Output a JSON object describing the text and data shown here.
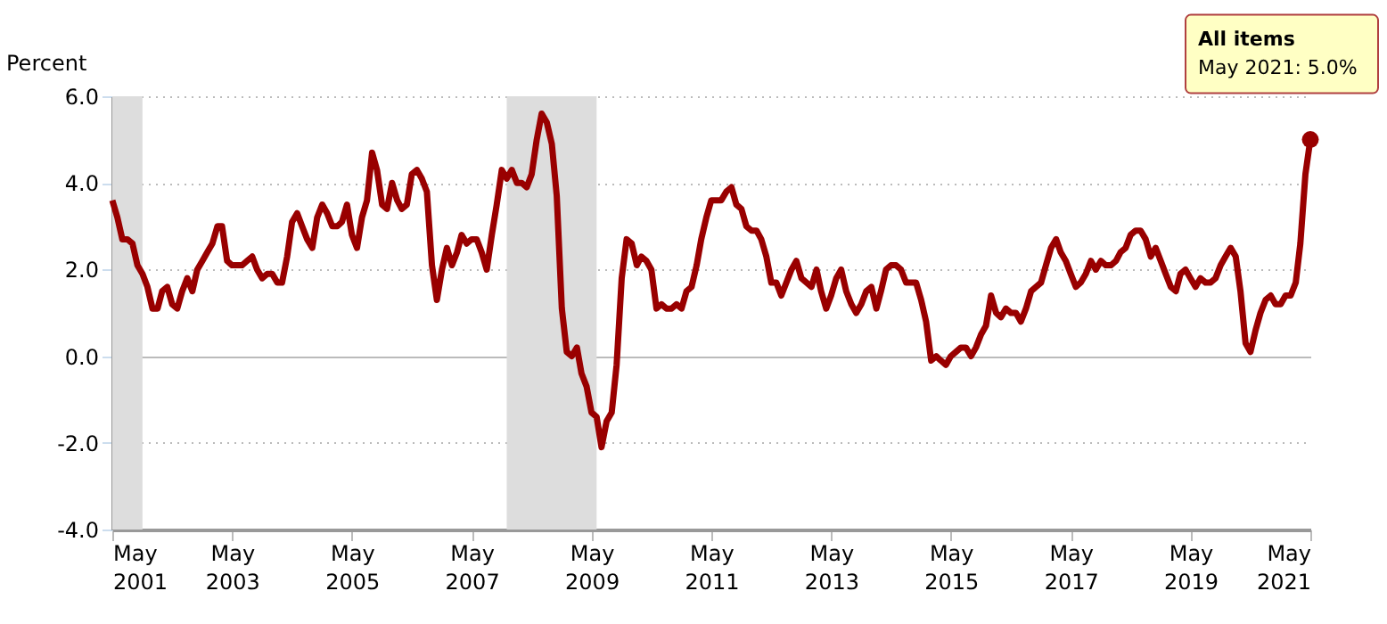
{
  "chart_data": {
    "type": "line",
    "ylabel": "Percent",
    "x": [
      "2001-05",
      "2001-06",
      "2001-07",
      "2001-08",
      "2001-09",
      "2001-10",
      "2001-11",
      "2001-12",
      "2002-01",
      "2002-02",
      "2002-03",
      "2002-04",
      "2002-05",
      "2002-06",
      "2002-07",
      "2002-08",
      "2002-09",
      "2002-10",
      "2002-11",
      "2002-12",
      "2003-01",
      "2003-02",
      "2003-03",
      "2003-04",
      "2003-05",
      "2003-06",
      "2003-07",
      "2003-08",
      "2003-09",
      "2003-10",
      "2003-11",
      "2003-12",
      "2004-01",
      "2004-02",
      "2004-03",
      "2004-04",
      "2004-05",
      "2004-06",
      "2004-07",
      "2004-08",
      "2004-09",
      "2004-10",
      "2004-11",
      "2004-12",
      "2005-01",
      "2005-02",
      "2005-03",
      "2005-04",
      "2005-05",
      "2005-06",
      "2005-07",
      "2005-08",
      "2005-09",
      "2005-10",
      "2005-11",
      "2005-12",
      "2006-01",
      "2006-02",
      "2006-03",
      "2006-04",
      "2006-05",
      "2006-06",
      "2006-07",
      "2006-08",
      "2006-09",
      "2006-10",
      "2006-11",
      "2006-12",
      "2007-01",
      "2007-02",
      "2007-03",
      "2007-04",
      "2007-05",
      "2007-06",
      "2007-07",
      "2007-08",
      "2007-09",
      "2007-10",
      "2007-11",
      "2007-12",
      "2008-01",
      "2008-02",
      "2008-03",
      "2008-04",
      "2008-05",
      "2008-06",
      "2008-07",
      "2008-08",
      "2008-09",
      "2008-10",
      "2008-11",
      "2008-12",
      "2009-01",
      "2009-02",
      "2009-03",
      "2009-04",
      "2009-05",
      "2009-06",
      "2009-07",
      "2009-08",
      "2009-09",
      "2009-10",
      "2009-11",
      "2009-12",
      "2010-01",
      "2010-02",
      "2010-03",
      "2010-04",
      "2010-05",
      "2010-06",
      "2010-07",
      "2010-08",
      "2010-09",
      "2010-10",
      "2010-11",
      "2010-12",
      "2011-01",
      "2011-02",
      "2011-03",
      "2011-04",
      "2011-05",
      "2011-06",
      "2011-07",
      "2011-08",
      "2011-09",
      "2011-10",
      "2011-11",
      "2011-12",
      "2012-01",
      "2012-02",
      "2012-03",
      "2012-04",
      "2012-05",
      "2012-06",
      "2012-07",
      "2012-08",
      "2012-09",
      "2012-10",
      "2012-11",
      "2012-12",
      "2013-01",
      "2013-02",
      "2013-03",
      "2013-04",
      "2013-05",
      "2013-06",
      "2013-07",
      "2013-08",
      "2013-09",
      "2013-10",
      "2013-11",
      "2013-12",
      "2014-01",
      "2014-02",
      "2014-03",
      "2014-04",
      "2014-05",
      "2014-06",
      "2014-07",
      "2014-08",
      "2014-09",
      "2014-10",
      "2014-11",
      "2014-12",
      "2015-01",
      "2015-02",
      "2015-03",
      "2015-04",
      "2015-05",
      "2015-06",
      "2015-07",
      "2015-08",
      "2015-09",
      "2015-10",
      "2015-11",
      "2015-12",
      "2016-01",
      "2016-02",
      "2016-03",
      "2016-04",
      "2016-05",
      "2016-06",
      "2016-07",
      "2016-08",
      "2016-09",
      "2016-10",
      "2016-11",
      "2016-12",
      "2017-01",
      "2017-02",
      "2017-03",
      "2017-04",
      "2017-05",
      "2017-06",
      "2017-07",
      "2017-08",
      "2017-09",
      "2017-10",
      "2017-11",
      "2017-12",
      "2018-01",
      "2018-02",
      "2018-03",
      "2018-04",
      "2018-05",
      "2018-06",
      "2018-07",
      "2018-08",
      "2018-09",
      "2018-10",
      "2018-11",
      "2018-12",
      "2019-01",
      "2019-02",
      "2019-03",
      "2019-04",
      "2019-05",
      "2019-06",
      "2019-07",
      "2019-08",
      "2019-09",
      "2019-10",
      "2019-11",
      "2019-12",
      "2020-01",
      "2020-02",
      "2020-03",
      "2020-04",
      "2020-05",
      "2020-06",
      "2020-07",
      "2020-08",
      "2020-09",
      "2020-10",
      "2020-11",
      "2020-12",
      "2021-01",
      "2021-02",
      "2021-03",
      "2021-04",
      "2021-05"
    ],
    "series": [
      {
        "name": "All items",
        "color": "#990000",
        "values": [
          3.6,
          3.2,
          2.7,
          2.7,
          2.6,
          2.1,
          1.9,
          1.6,
          1.1,
          1.1,
          1.5,
          1.6,
          1.2,
          1.1,
          1.5,
          1.8,
          1.5,
          2.0,
          2.2,
          2.4,
          2.6,
          3.0,
          3.0,
          2.2,
          2.1,
          2.1,
          2.1,
          2.2,
          2.3,
          2.0,
          1.8,
          1.9,
          1.9,
          1.7,
          1.7,
          2.3,
          3.1,
          3.3,
          3.0,
          2.7,
          2.5,
          3.2,
          3.5,
          3.3,
          3.0,
          3.0,
          3.1,
          3.5,
          2.8,
          2.5,
          3.2,
          3.6,
          4.7,
          4.3,
          3.5,
          3.4,
          4.0,
          3.6,
          3.4,
          3.5,
          4.2,
          4.3,
          4.1,
          3.8,
          2.1,
          1.3,
          2.0,
          2.5,
          2.1,
          2.4,
          2.8,
          2.6,
          2.7,
          2.7,
          2.4,
          2.0,
          2.8,
          3.5,
          4.3,
          4.1,
          4.3,
          4.0,
          4.0,
          3.9,
          4.2,
          5.0,
          5.6,
          5.4,
          4.9,
          3.7,
          1.1,
          0.1,
          0.0,
          0.2,
          -0.4,
          -0.7,
          -1.3,
          -1.4,
          -2.1,
          -1.5,
          -1.3,
          -0.2,
          1.8,
          2.7,
          2.6,
          2.1,
          2.3,
          2.2,
          2.0,
          1.1,
          1.2,
          1.1,
          1.1,
          1.2,
          1.1,
          1.5,
          1.6,
          2.1,
          2.7,
          3.2,
          3.6,
          3.6,
          3.6,
          3.8,
          3.9,
          3.5,
          3.4,
          3.0,
          2.9,
          2.9,
          2.7,
          2.3,
          1.7,
          1.7,
          1.4,
          1.7,
          2.0,
          2.2,
          1.8,
          1.7,
          1.6,
          2.0,
          1.5,
          1.1,
          1.4,
          1.8,
          2.0,
          1.5,
          1.2,
          1.0,
          1.2,
          1.5,
          1.6,
          1.1,
          1.5,
          2.0,
          2.1,
          2.1,
          2.0,
          1.7,
          1.7,
          1.7,
          1.3,
          0.8,
          -0.1,
          0.0,
          -0.1,
          -0.2,
          0.0,
          0.1,
          0.2,
          0.2,
          0.0,
          0.2,
          0.5,
          0.7,
          1.4,
          1.0,
          0.9,
          1.1,
          1.0,
          1.0,
          0.8,
          1.1,
          1.5,
          1.6,
          1.7,
          2.1,
          2.5,
          2.7,
          2.4,
          2.2,
          1.9,
          1.6,
          1.7,
          1.9,
          2.2,
          2.0,
          2.2,
          2.1,
          2.1,
          2.2,
          2.4,
          2.5,
          2.8,
          2.9,
          2.9,
          2.7,
          2.3,
          2.5,
          2.2,
          1.9,
          1.6,
          1.5,
          1.9,
          2.0,
          1.8,
          1.6,
          1.8,
          1.7,
          1.7,
          1.8,
          2.1,
          2.3,
          2.5,
          2.3,
          1.5,
          0.3,
          0.1,
          0.6,
          1.0,
          1.3,
          1.4,
          1.2,
          1.2,
          1.4,
          1.4,
          1.7,
          2.6,
          4.2,
          5.0
        ]
      }
    ],
    "xlim": [
      "2001-05",
      "2021-05"
    ],
    "xticks": [
      {
        "value": "2001-05",
        "label": "May 2001"
      },
      {
        "value": "2003-05",
        "label": "May 2003"
      },
      {
        "value": "2005-05",
        "label": "May 2005"
      },
      {
        "value": "2007-05",
        "label": "May 2007"
      },
      {
        "value": "2009-05",
        "label": "May 2009"
      },
      {
        "value": "2011-05",
        "label": "May 2011"
      },
      {
        "value": "2013-05",
        "label": "May 2013"
      },
      {
        "value": "2015-05",
        "label": "May 2015"
      },
      {
        "value": "2017-05",
        "label": "May 2017"
      },
      {
        "value": "2019-05",
        "label": "May 2019"
      },
      {
        "value": "2021-05",
        "label": "May 2021"
      }
    ],
    "ylim": [
      -4,
      6
    ],
    "yticks": [
      {
        "value": -4,
        "label": "-4.0"
      },
      {
        "value": -2,
        "label": "-2.0"
      },
      {
        "value": 0,
        "label": "0.0"
      },
      {
        "value": 2,
        "label": "2.0"
      },
      {
        "value": 4,
        "label": "4.0"
      },
      {
        "value": 6,
        "label": "6.0"
      }
    ],
    "bands": [
      {
        "axis": "x",
        "from": "2001-05",
        "to": "2001-11",
        "color": "#dddddd"
      },
      {
        "axis": "x",
        "from": "2007-12",
        "to": "2009-06",
        "color": "#dddddd"
      }
    ],
    "annotations": [
      "May 2021: 5.0%"
    ],
    "grid": "y",
    "marker": "none",
    "line_style": "solid"
  }
}
